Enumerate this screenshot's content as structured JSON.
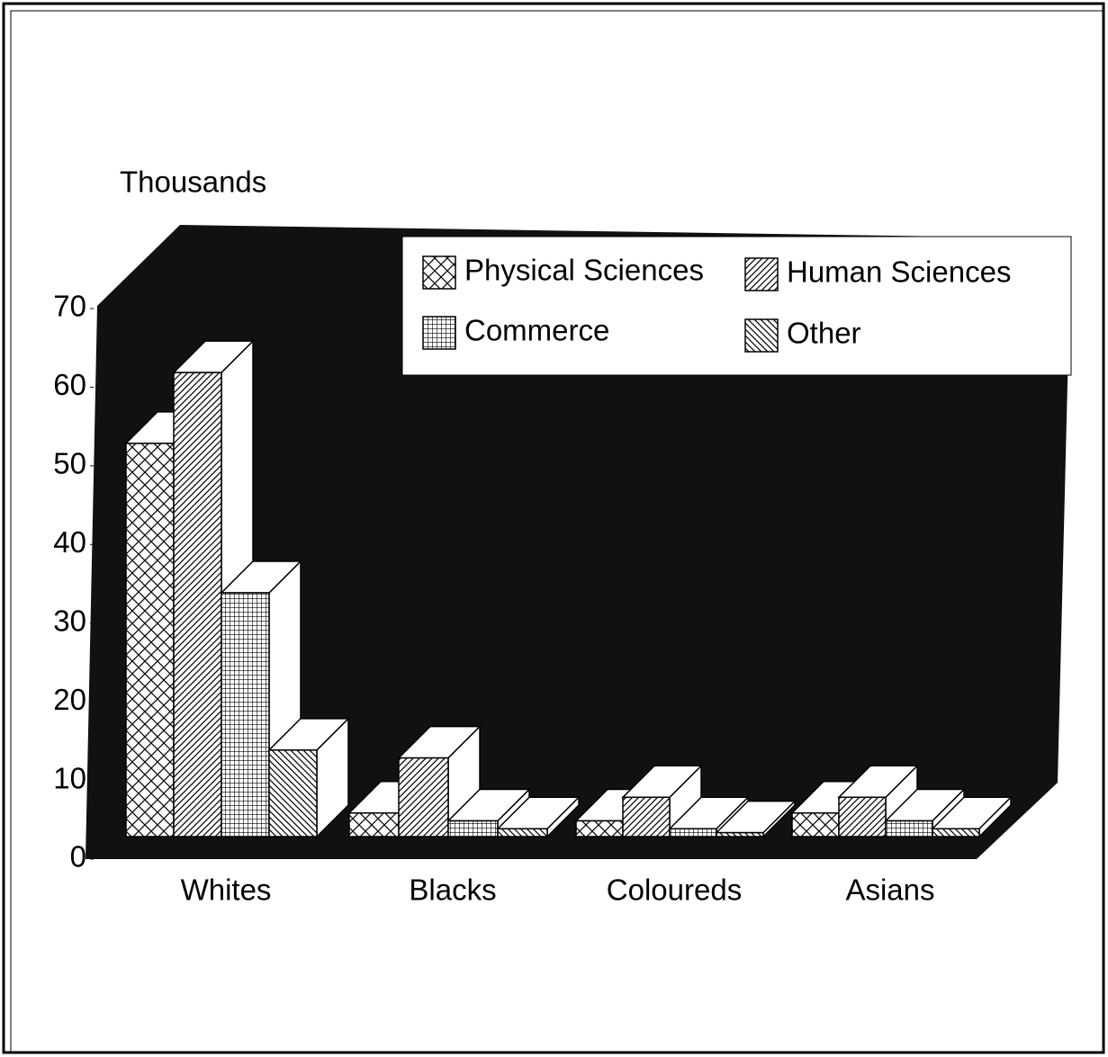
{
  "chart_data": {
    "type": "bar3d",
    "y_label": "Thousands",
    "categories": [
      "Whites",
      "Blacks",
      "Coloureds",
      "Asians"
    ],
    "series": [
      {
        "name": "Physical Sciences",
        "values": [
          50,
          3,
          2,
          3
        ]
      },
      {
        "name": "Human Sciences",
        "values": [
          59,
          10,
          5,
          5
        ]
      },
      {
        "name": "Commerce",
        "values": [
          31,
          2,
          1,
          2
        ]
      },
      {
        "name": "Other",
        "values": [
          11,
          1,
          0.5,
          1
        ]
      }
    ],
    "ylim": [
      0,
      70
    ],
    "yticks": [
      0,
      10,
      20,
      30,
      40,
      50,
      60,
      70
    ]
  }
}
